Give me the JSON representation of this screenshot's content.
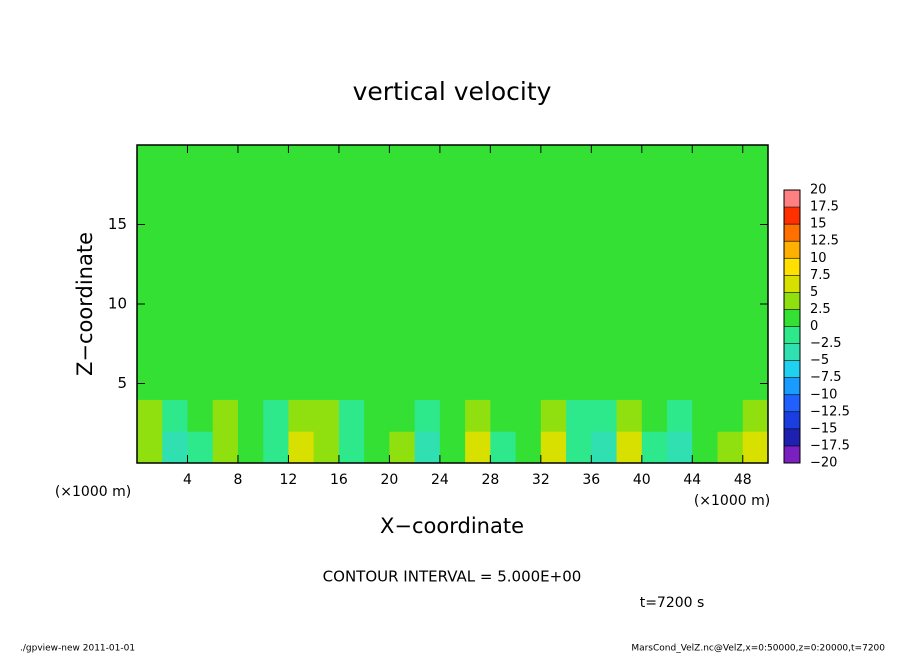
{
  "chart_data": {
    "type": "heatmap",
    "title": "vertical velocity",
    "x_label": "X−coordinate",
    "y_label": "Z−coordinate",
    "x_unit_label": "(×1000 m)",
    "y_unit_label": "(×1000 m)",
    "xlim": [
      0,
      50
    ],
    "ylim": [
      0,
      20
    ],
    "xticks": [
      4,
      8,
      12,
      16,
      20,
      24,
      28,
      32,
      36,
      40,
      44,
      48
    ],
    "yticks": [
      5,
      10,
      15
    ],
    "x_edges": [
      0,
      2,
      4,
      6,
      8,
      10,
      12,
      14,
      16,
      18,
      20,
      22,
      24,
      26,
      28,
      30,
      32,
      34,
      36,
      38,
      40,
      42,
      44,
      46,
      48,
      50
    ],
    "z_edges": [
      0,
      2,
      4,
      20
    ],
    "values": [
      [
        2.5,
        -5,
        -2.5,
        2.5,
        0,
        -2.5,
        5,
        2.5,
        -2.5,
        0,
        2.5,
        -5,
        0,
        5,
        -2.5,
        0,
        5,
        -2.5,
        -5,
        5,
        -2.5,
        -5,
        0,
        2.5,
        5
      ],
      [
        2.5,
        -2.5,
        0,
        2.5,
        0,
        -2.5,
        2.5,
        2.5,
        -2.5,
        0,
        0,
        -2.5,
        0,
        2.5,
        0,
        0,
        2.5,
        -2.5,
        -2.5,
        2.5,
        0,
        -2.5,
        0,
        0,
        2.5
      ],
      [
        0,
        0,
        0,
        0,
        0,
        0,
        0,
        0,
        0,
        0,
        0,
        0,
        0,
        0,
        0,
        0,
        0,
        0,
        0,
        0,
        0,
        0,
        0,
        0,
        0
      ]
    ],
    "colorbar": {
      "levels": [
        {
          "value": -20,
          "label": "−20"
        },
        {
          "value": -17.5,
          "label": "−17.5"
        },
        {
          "value": -15,
          "label": "−15"
        },
        {
          "value": -12.5,
          "label": "−12.5"
        },
        {
          "value": -10,
          "label": "−10"
        },
        {
          "value": -7.5,
          "label": "−7.5"
        },
        {
          "value": -5,
          "label": "−5"
        },
        {
          "value": -2.5,
          "label": "−2.5"
        },
        0,
        2.5,
        5,
        7.5,
        10,
        12.5,
        15,
        17.5,
        20
      ],
      "colors": [
        "#7a1fc0",
        "#2020b0",
        "#1a3ee0",
        "#2060ff",
        "#1a9bff",
        "#20d0f0",
        "#30e0b0",
        "#2ee88c",
        "#33e033",
        "#90e010",
        "#d8e000",
        "#ffe000",
        "#ffb000",
        "#ff7000",
        "#ff3000",
        "#ff8080"
      ]
    },
    "contour_interval": "CONTOUR INTERVAL = 5.000E+00",
    "time_label": "t=7200 s",
    "footer_left": "./gpview-new   2011-01-01",
    "footer_right": "MarsCond_VelZ.nc@VelZ,x=0:50000,z=0:20000,t=7200"
  }
}
